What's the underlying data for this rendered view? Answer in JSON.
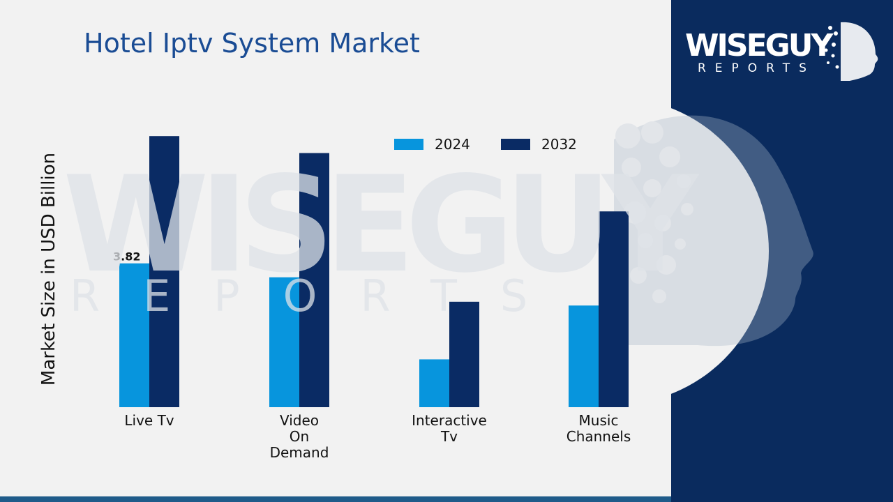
{
  "header": {
    "title": "Hotel Iptv System Market"
  },
  "brand": {
    "line1": "WISEGUY",
    "line2": "REPORTS"
  },
  "watermark": {
    "line1": "WISEGUY",
    "line2": "REPORTS"
  },
  "colors": {
    "panel": "#0a2b5e",
    "series_2024": "#0795dd",
    "series_2032": "#0a2b64",
    "title": "#1a4c94",
    "background": "#f2f2f2"
  },
  "chart_data": {
    "type": "bar",
    "title": "Hotel Iptv System Market",
    "ylabel": "Market Size in USD Billion",
    "xlabel": "",
    "categories": [
      "Live Tv",
      "Video On Demand",
      "Interactive Tv",
      "Music Channels"
    ],
    "category_lines": [
      [
        "Live Tv"
      ],
      [
        "Video",
        "On",
        "Demand"
      ],
      [
        "Interactive",
        "Tv"
      ],
      [
        "Music",
        "Channels"
      ]
    ],
    "series": [
      {
        "name": "2024",
        "values": [
          3.82,
          3.45,
          1.27,
          2.7
        ],
        "color": "#0795dd"
      },
      {
        "name": "2032",
        "values": [
          7.2,
          6.75,
          2.8,
          5.2
        ],
        "color": "#0a2b64"
      }
    ],
    "data_labels": [
      {
        "series": 0,
        "index": 0,
        "text": "3.82"
      }
    ],
    "ylim": [
      0,
      8
    ],
    "grid": false,
    "legend": "top"
  }
}
